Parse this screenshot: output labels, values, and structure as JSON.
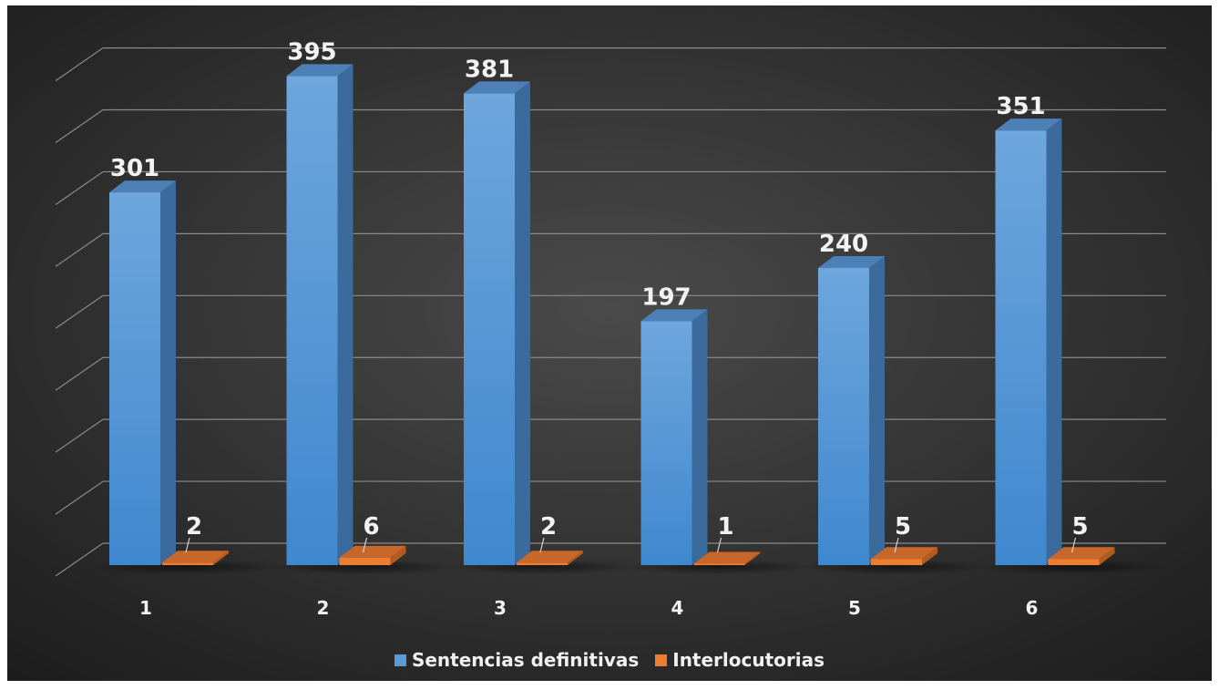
{
  "chart_data": {
    "type": "bar",
    "categories": [
      "1",
      "2",
      "3",
      "4",
      "5",
      "6"
    ],
    "series": [
      {
        "name": "Sentencias definitivas",
        "values": [
          301,
          395,
          381,
          197,
          240,
          351
        ],
        "color": "#5b9bd5"
      },
      {
        "name": "Interlocutorias",
        "values": [
          2,
          6,
          2,
          1,
          5,
          5
        ],
        "color": "#ed7d31"
      }
    ],
    "data_labels": {
      "Sentencias definitivas": [
        "301",
        "395",
        "381",
        "197",
        "240",
        "351"
      ],
      "Interlocutorias": [
        "2",
        "6",
        "2",
        "1",
        "5",
        "5"
      ]
    },
    "title": "",
    "xlabel": "",
    "ylabel": "",
    "ylim": [
      0,
      400
    ],
    "y_gridlines": 9,
    "grid": true,
    "three_d": true,
    "y_tick_labels_shown": false,
    "legend_position": "bottom",
    "background": "#2f2f2f"
  }
}
